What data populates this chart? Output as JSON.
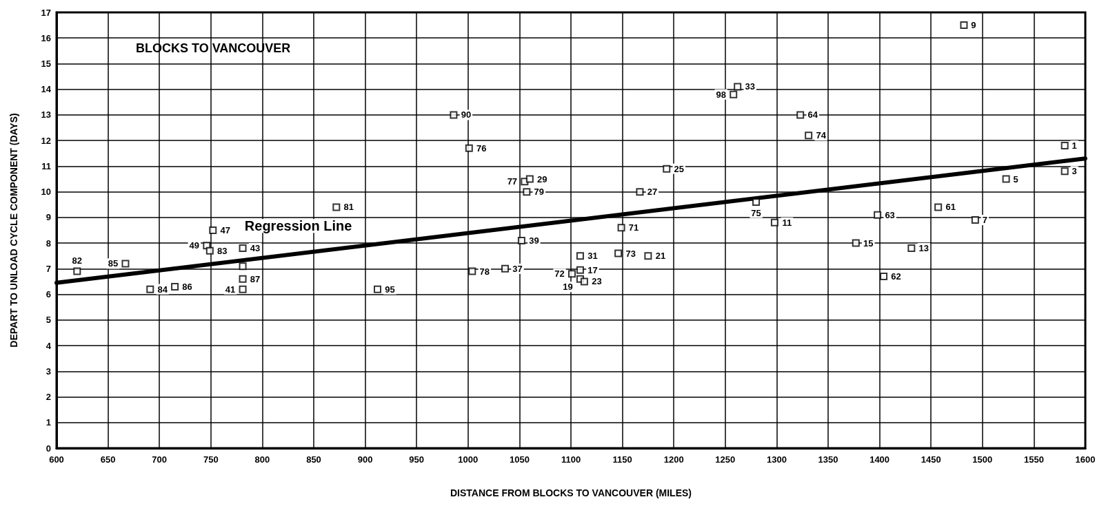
{
  "chart_data": {
    "type": "scatter",
    "title": "BLOCKS TO VANCOUVER",
    "xlabel": "DISTANCE FROM BLOCKS TO VANCOUVER (MILES)",
    "ylabel": "DEPART TO UNLOAD CYCLE COMPONENT (DAYS)",
    "series": [
      {
        "color": "#000000",
        "marker": "square",
        "x": [
          620,
          667,
          691,
          715,
          746,
          749,
          752,
          781,
          781,
          781,
          781,
          872,
          912,
          986,
          1001,
          1004,
          1036,
          1052,
          1055,
          1060,
          1057,
          1101,
          1109,
          1109,
          1113,
          1109,
          1146,
          1149,
          1175,
          1167,
          1193,
          1262,
          1258,
          1280,
          1298,
          1323,
          1331,
          1377,
          1398,
          1404,
          1431,
          1457,
          1482,
          1493,
          1523,
          1580,
          1580
        ],
        "values": [
          6.9,
          7.2,
          6.2,
          6.3,
          7.9,
          7.7,
          8.5,
          7.8,
          7.1,
          6.6,
          6.2,
          9.4,
          6.2,
          13.0,
          11.7,
          6.9,
          7.0,
          8.1,
          10.4,
          10.5,
          10.0,
          6.8,
          6.95,
          6.6,
          6.5,
          7.5,
          7.6,
          8.6,
          7.5,
          10.0,
          10.9,
          14.1,
          13.8,
          9.6,
          8.8,
          13.0,
          12.2,
          8.0,
          9.1,
          6.7,
          7.8,
          9.4,
          16.5,
          8.9,
          10.5,
          11.8,
          10.8
        ]
      },
      {
        "type": "line",
        "color": "#000000",
        "marker": "none",
        "line_style": "solid",
        "x": [
          600,
          1600
        ],
        "values": [
          6.45,
          11.3
        ]
      }
    ],
    "annotations": [
      "Regression Line",
      {
        "text": "82",
        "x": 620,
        "y": 6.9
      },
      {
        "text": "85",
        "x": 667,
        "y": 7.2
      },
      {
        "text": "84",
        "x": 691,
        "y": 6.2
      },
      {
        "text": "86",
        "x": 715,
        "y": 6.3
      },
      {
        "text": "49",
        "x": 746,
        "y": 7.9
      },
      {
        "text": "83",
        "x": 749,
        "y": 7.7
      },
      {
        "text": "47",
        "x": 752,
        "y": 8.5
      },
      {
        "text": "43",
        "x": 781,
        "y": 7.8
      },
      {
        "text": "87",
        "x": 781,
        "y": 6.6
      },
      {
        "text": "41",
        "x": 781,
        "y": 6.2
      },
      {
        "text": "81",
        "x": 872,
        "y": 9.4
      },
      {
        "text": "95",
        "x": 912,
        "y": 6.2
      },
      {
        "text": "90",
        "x": 986,
        "y": 13.0
      },
      {
        "text": "76",
        "x": 1001,
        "y": 11.7
      },
      {
        "text": "78",
        "x": 1004,
        "y": 6.9
      },
      {
        "text": "37",
        "x": 1036,
        "y": 7.0
      },
      {
        "text": "39",
        "x": 1052,
        "y": 8.1
      },
      {
        "text": "77",
        "x": 1055,
        "y": 10.4
      },
      {
        "text": "29",
        "x": 1060,
        "y": 10.5
      },
      {
        "text": "79",
        "x": 1057,
        "y": 10.0
      },
      {
        "text": "72",
        "x": 1101,
        "y": 6.8
      },
      {
        "text": "17",
        "x": 1109,
        "y": 6.95
      },
      {
        "text": "19",
        "x": 1109,
        "y": 6.6
      },
      {
        "text": "23",
        "x": 1113,
        "y": 6.5
      },
      {
        "text": "31",
        "x": 1109,
        "y": 7.5
      },
      {
        "text": "73",
        "x": 1146,
        "y": 7.6
      },
      {
        "text": "71",
        "x": 1149,
        "y": 8.6
      },
      {
        "text": "21",
        "x": 1175,
        "y": 7.5
      },
      {
        "text": "27",
        "x": 1167,
        "y": 10.0
      },
      {
        "text": "25",
        "x": 1193,
        "y": 10.9
      },
      {
        "text": "33",
        "x": 1262,
        "y": 14.1
      },
      {
        "text": "98",
        "x": 1258,
        "y": 13.8
      },
      {
        "text": "75",
        "x": 1280,
        "y": 9.6
      },
      {
        "text": "11",
        "x": 1298,
        "y": 8.8
      },
      {
        "text": "64",
        "x": 1323,
        "y": 13.0
      },
      {
        "text": "74",
        "x": 1331,
        "y": 12.2
      },
      {
        "text": "15",
        "x": 1377,
        "y": 8.0
      },
      {
        "text": "63",
        "x": 1398,
        "y": 9.1
      },
      {
        "text": "62",
        "x": 1404,
        "y": 6.7
      },
      {
        "text": "13",
        "x": 1431,
        "y": 7.8
      },
      {
        "text": "61",
        "x": 1457,
        "y": 9.4
      },
      {
        "text": "9",
        "x": 1482,
        "y": 16.5
      },
      {
        "text": "7",
        "x": 1493,
        "y": 8.9
      },
      {
        "text": "5",
        "x": 1523,
        "y": 10.5
      },
      {
        "text": "1",
        "x": 1580,
        "y": 11.8
      },
      {
        "text": "3",
        "x": 1580,
        "y": 10.8
      }
    ],
    "xlim": [
      600,
      1600
    ],
    "xticks": [
      600,
      650,
      700,
      750,
      800,
      850,
      900,
      950,
      1000,
      1050,
      1100,
      1150,
      1200,
      1250,
      1300,
      1350,
      1400,
      1450,
      1500,
      1550,
      1600
    ],
    "ylim": [
      0,
      17
    ],
    "yticks": [
      0,
      1,
      2,
      3,
      4,
      5,
      6,
      7,
      8,
      9,
      10,
      11,
      12,
      13,
      14,
      15,
      16,
      17
    ],
    "grid": true
  }
}
